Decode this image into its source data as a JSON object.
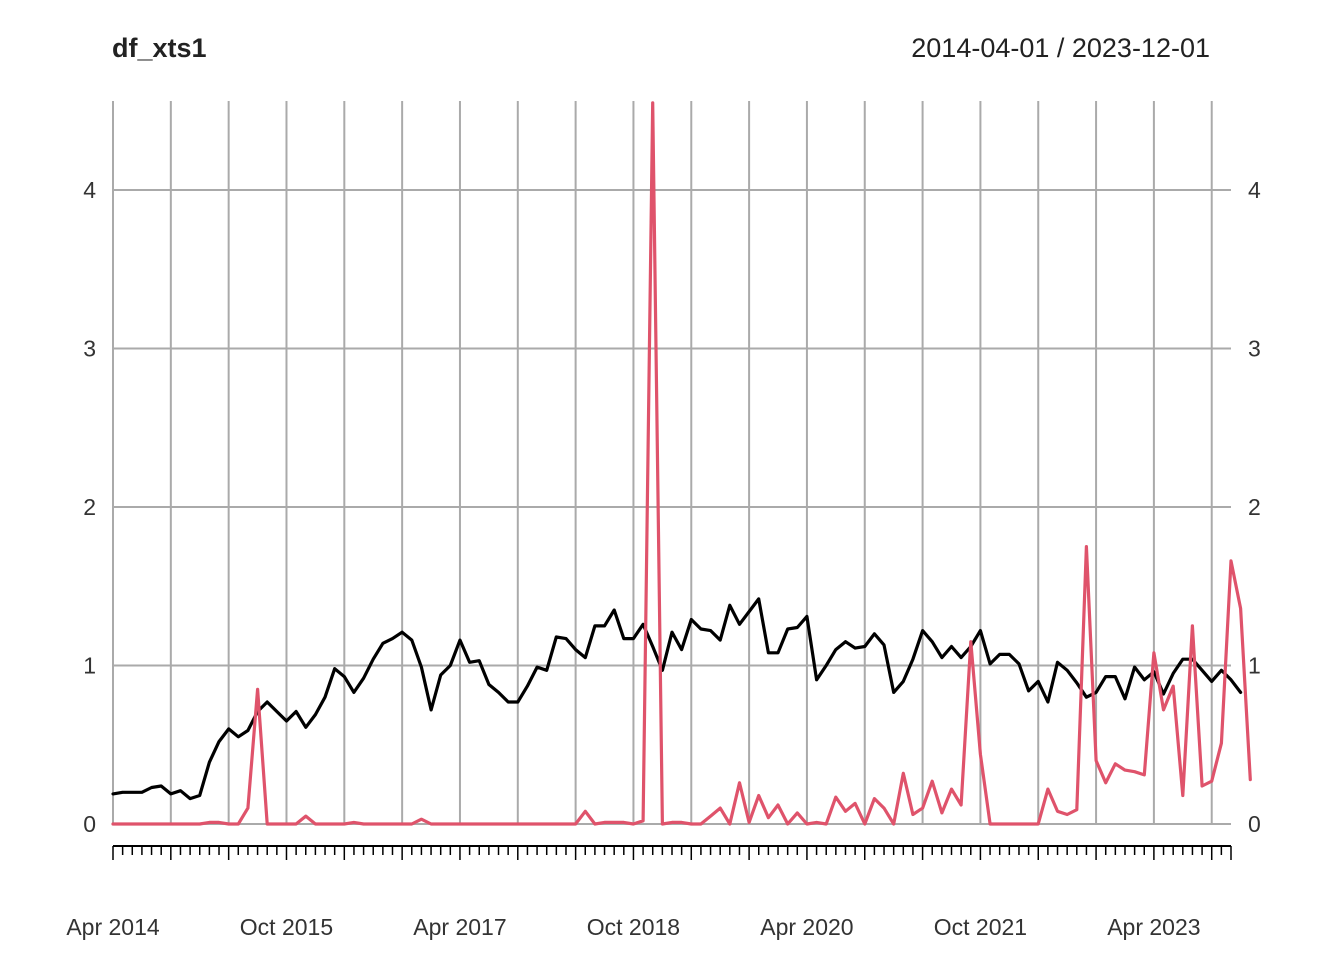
{
  "chart_data": {
    "type": "line",
    "title": "df_xts1",
    "date_range_label": "2014-04-01 / 2023-12-01",
    "start_date": "2014-04-01",
    "end_date": "2023-12-01",
    "frequency": "monthly",
    "ylim": [
      0,
      4.55
    ],
    "y_ticks": [
      0,
      1,
      2,
      3,
      4
    ],
    "x_tick_labels": [
      {
        "date": "2014-04-01",
        "label": "Apr 2014"
      },
      {
        "date": "2015-10-01",
        "label": "Oct 2015"
      },
      {
        "date": "2017-04-01",
        "label": "Apr 2017"
      },
      {
        "date": "2018-10-01",
        "label": "Oct 2018"
      },
      {
        "date": "2020-04-01",
        "label": "Apr 2020"
      },
      {
        "date": "2021-10-01",
        "label": "Oct 2021"
      },
      {
        "date": "2023-04-01",
        "label": "Apr 2023"
      }
    ],
    "grid": true,
    "series": [
      {
        "color": "#000000",
        "values": [
          0.19,
          0.2,
          0.2,
          0.2,
          0.23,
          0.24,
          0.19,
          0.21,
          0.16,
          0.18,
          0.39,
          0.52,
          0.6,
          0.55,
          0.59,
          0.71,
          0.77,
          0.71,
          0.65,
          0.71,
          0.61,
          0.69,
          0.8,
          0.98,
          0.93,
          0.83,
          0.92,
          1.04,
          1.14,
          1.17,
          1.21,
          1.16,
          0.99,
          0.72,
          0.94,
          1.0,
          1.16,
          1.02,
          1.03,
          0.88,
          0.83,
          0.77,
          0.77,
          0.87,
          0.99,
          0.97,
          1.18,
          1.17,
          1.1,
          1.05,
          1.25,
          1.25,
          1.35,
          1.17,
          1.17,
          1.26,
          1.12,
          0.97,
          1.21,
          1.1,
          1.29,
          1.23,
          1.22,
          1.16,
          1.38,
          1.26,
          1.34,
          1.42,
          1.08,
          1.08,
          1.23,
          1.24,
          1.31,
          0.91,
          1.0,
          1.1,
          1.15,
          1.11,
          1.12,
          1.2,
          1.13,
          0.83,
          0.9,
          1.04,
          1.22,
          1.15,
          1.05,
          1.12,
          1.05,
          1.12,
          1.22,
          1.01,
          1.07,
          1.07,
          1.01,
          0.84,
          0.9,
          0.77,
          1.02,
          0.97,
          0.89,
          0.8,
          0.83,
          0.93,
          0.93,
          0.79,
          0.99,
          0.91,
          0.96,
          0.82,
          0.95,
          1.04,
          1.04,
          0.97,
          0.9,
          0.97,
          0.91,
          0.83
        ]
      },
      {
        "color": "#DF536B",
        "values": [
          0,
          0,
          0,
          0,
          0,
          0,
          0,
          0,
          0,
          0,
          0.01,
          0.01,
          0,
          0,
          0.1,
          0.85,
          0,
          0,
          0,
          0,
          0.05,
          0,
          0,
          0,
          0,
          0.01,
          0,
          0,
          0,
          0,
          0,
          0,
          0.03,
          0,
          0,
          0,
          0,
          0,
          0,
          0,
          0,
          0,
          0,
          0,
          0,
          0,
          0,
          0,
          0,
          0.08,
          0,
          0.01,
          0.01,
          0.01,
          0,
          0.02,
          4.55,
          0,
          0.01,
          0.01,
          0,
          0,
          0.05,
          0.1,
          0,
          0.26,
          0.01,
          0.18,
          0.04,
          0.12,
          0,
          0.07,
          0,
          0.01,
          0,
          0.17,
          0.08,
          0.13,
          0,
          0.16,
          0.1,
          0,
          0.32,
          0.06,
          0.1,
          0.27,
          0.07,
          0.22,
          0.12,
          1.15,
          0.44,
          0,
          0,
          0,
          0,
          0,
          0,
          0.22,
          0.08,
          0.06,
          0.09,
          1.75,
          0.4,
          0.26,
          0.38,
          0.34,
          0.33,
          0.31,
          1.08,
          0.72,
          0.87,
          0.18,
          1.25,
          0.24,
          0.27,
          0.51,
          1.66,
          1.36,
          0.28
        ]
      }
    ]
  }
}
